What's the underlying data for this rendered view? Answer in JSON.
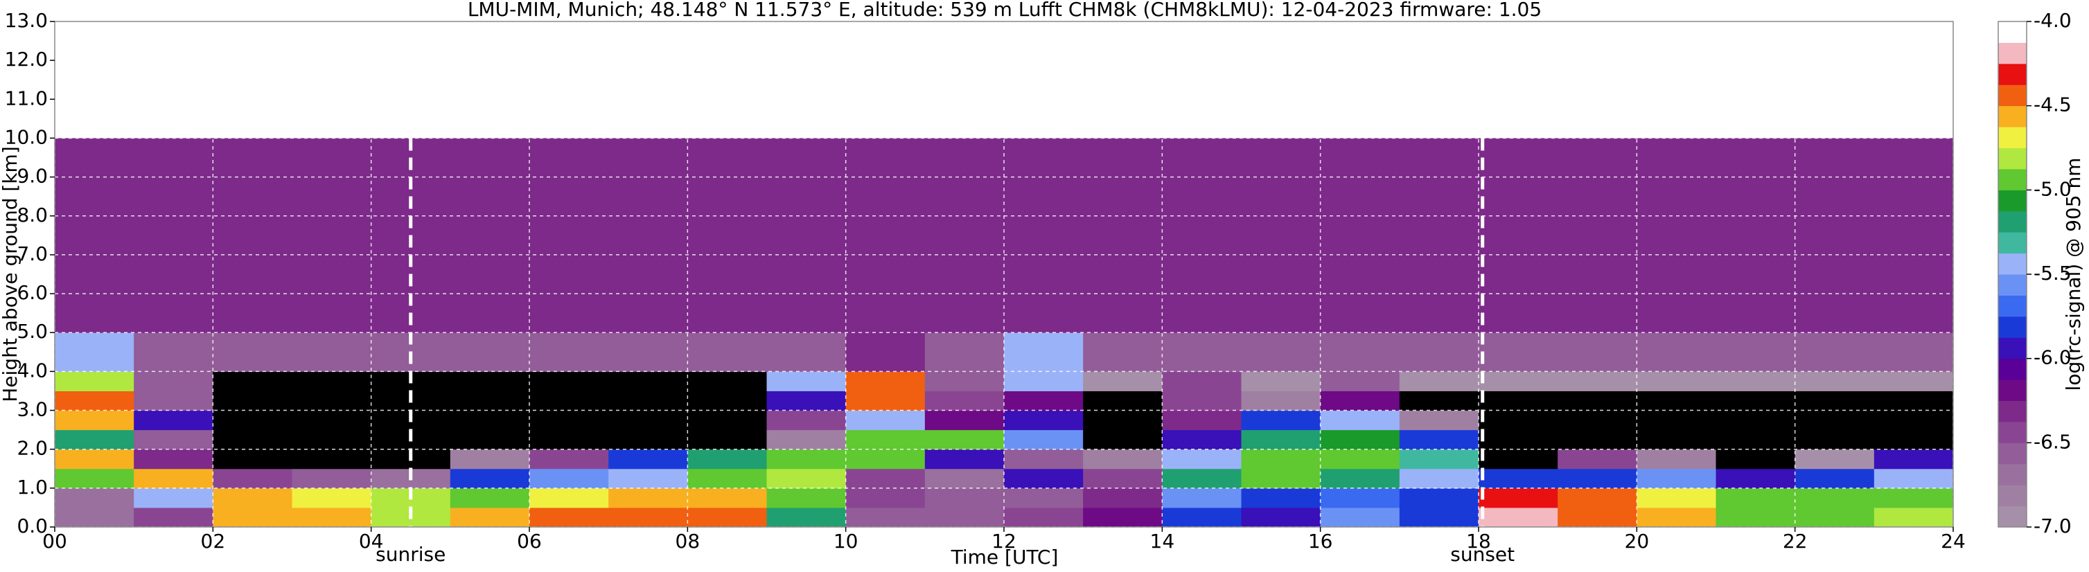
{
  "chart_data": {
    "type": "heatmap",
    "title": "LMU-MIM, Munich; 48.148° N 11.573° E, altitude: 539 m    Lufft CHM8k (CHM8kLMU): 12-04-2023    firmware: 1.05",
    "x_label": "Time [UTC]",
    "y_label": "Height above ground [km]",
    "colorbar_label": "log(rc-signal) @ 905 nm",
    "xlim": [
      0,
      24
    ],
    "ylim": [
      0,
      13
    ],
    "xticks": [
      {
        "value": 0,
        "label": "00"
      },
      {
        "value": 2,
        "label": "02"
      },
      {
        "value": 4,
        "label": "04"
      },
      {
        "value": 6,
        "label": "06"
      },
      {
        "value": 8,
        "label": "08"
      },
      10,
      12,
      14,
      16,
      18,
      20,
      22,
      24
    ],
    "yticks": [
      {
        "value": 0,
        "label": "0.0"
      },
      {
        "value": 1,
        "label": "1.0"
      },
      {
        "value": 2,
        "label": "2.0"
      },
      {
        "value": 3,
        "label": "3.0"
      },
      {
        "value": 4,
        "label": "4.0"
      },
      {
        "value": 5,
        "label": "5.0"
      },
      {
        "value": 6,
        "label": "6.0"
      },
      {
        "value": 7,
        "label": "7.0"
      },
      {
        "value": 8,
        "label": "8.0"
      },
      {
        "value": 9,
        "label": "9.0"
      },
      {
        "value": 10,
        "label": "10.0"
      },
      {
        "value": 11,
        "label": "11.0"
      },
      {
        "value": 12,
        "label": "12.0"
      },
      {
        "value": 13,
        "label": "13.0"
      }
    ],
    "grid": true,
    "x_bins": [
      0,
      1,
      2,
      3,
      4,
      5,
      6,
      7,
      8,
      9,
      10,
      11,
      12,
      13,
      14,
      15,
      16,
      17,
      18,
      19,
      20,
      21,
      22,
      23,
      24
    ],
    "y_bins": [
      0,
      0.5,
      1,
      1.5,
      2,
      2.5,
      3,
      3.5,
      4,
      5,
      10
    ],
    "z": [
      [
        -6.7,
        -6.5,
        -4.6,
        -4.6,
        -4.8,
        -4.6,
        -4.5,
        -4.5,
        -4.4,
        -5.2,
        -6.6,
        -6.6,
        -6.5,
        -6.2,
        -5.8,
        -6.0,
        -5.6,
        -5.8,
        -4.2,
        -4.4,
        -4.6,
        -4.9,
        -4.9,
        -4.8
      ],
      [
        -6.7,
        -5.5,
        -4.6,
        -4.7,
        -4.8,
        -5.0,
        -4.7,
        -4.6,
        -4.6,
        -5.0,
        -6.5,
        -6.6,
        -6.6,
        -6.3,
        -5.6,
        -5.8,
        -5.7,
        -5.8,
        -4.3,
        -4.5,
        -4.7,
        -5.0,
        -5.0,
        -4.9
      ],
      [
        -5.0,
        -4.6,
        -6.4,
        -6.6,
        -6.7,
        -5.8,
        -5.6,
        -5.4,
        -5.0,
        -4.8,
        -6.5,
        -6.7,
        -6.0,
        -6.5,
        -5.2,
        -5.0,
        -5.2,
        -5.4,
        -5.8,
        -5.8,
        -5.6,
        -6.0,
        -5.8,
        -5.4
      ],
      [
        -4.6,
        -6.3,
        -7.5,
        -7.5,
        -7.5,
        -6.8,
        -6.5,
        -5.8,
        -5.2,
        -5.0,
        -5.0,
        -6.0,
        -6.6,
        -6.8,
        -5.4,
        -4.9,
        -5.0,
        -5.3,
        -7.5,
        -6.5,
        -6.8,
        -7.5,
        -7.0,
        -6.0
      ],
      [
        -5.2,
        -6.6,
        -7.5,
        -7.5,
        -7.5,
        -7.5,
        -7.5,
        -7.5,
        -7.5,
        -6.8,
        -4.9,
        -4.9,
        -5.6,
        -7.5,
        -6.0,
        -5.2,
        -5.1,
        -5.8,
        -7.5,
        -7.5,
        -7.5,
        -7.5,
        -7.5,
        -7.5
      ],
      [
        -4.6,
        -6.0,
        -7.5,
        -7.5,
        -7.5,
        -7.5,
        -7.5,
        -7.5,
        -7.5,
        -6.5,
        -5.5,
        -6.2,
        -6.0,
        -7.5,
        -6.3,
        -5.8,
        -5.5,
        -6.8,
        -7.5,
        -7.5,
        -7.5,
        -7.5,
        -7.5,
        -7.5
      ],
      [
        -4.4,
        -6.6,
        -7.5,
        -7.5,
        -7.5,
        -7.5,
        -7.5,
        -7.3,
        -7.3,
        -6.0,
        -4.5,
        -6.5,
        -6.2,
        -7.3,
        -6.5,
        -6.8,
        -6.2,
        -7.3,
        -7.3,
        -7.3,
        -7.3,
        -7.3,
        -7.3,
        -7.3
      ],
      [
        -4.8,
        -6.6,
        -7.2,
        -7.2,
        -7.2,
        -7.2,
        -7.2,
        -7.2,
        -7.2,
        -5.5,
        -4.5,
        -6.6,
        -5.5,
        -7.0,
        -6.4,
        -6.9,
        -6.6,
        -7.0,
        -7.0,
        -7.0,
        -7.0,
        -7.0,
        -7.0,
        -7.0
      ],
      [
        -5.5,
        -6.6,
        -6.6,
        -6.6,
        -6.6,
        -6.6,
        -6.6,
        -6.6,
        -6.6,
        -6.6,
        -6.3,
        -6.6,
        -5.5,
        -6.6,
        -6.6,
        -6.6,
        -6.6,
        -6.6,
        -6.6,
        -6.6,
        -6.6,
        -6.6,
        -6.6,
        -6.6
      ],
      [
        -6.3,
        -6.3,
        -6.3,
        -6.3,
        -6.3,
        -6.3,
        -6.3,
        -6.3,
        -6.3,
        -6.3,
        -6.3,
        -6.3,
        -6.3,
        -6.3,
        -6.3,
        -6.3,
        -6.3,
        -6.3,
        -6.3,
        -6.3,
        -6.3,
        -6.3,
        -6.3,
        -6.3
      ]
    ],
    "clim": [
      -7,
      -4
    ],
    "colorbar_ticks": [
      {
        "value": -7,
        "label": "-7.0"
      },
      {
        "value": -6.5,
        "label": "-6.5"
      },
      {
        "value": -6,
        "label": "-6.0"
      },
      {
        "value": -5.5,
        "label": "-5.5"
      },
      {
        "value": -5,
        "label": "-5.0"
      },
      {
        "value": -4.5,
        "label": "-4.5"
      },
      {
        "value": -4,
        "label": "-4.0"
      }
    ],
    "colormap": [
      "#a68fa8",
      "#9f80a2",
      "#99709e",
      "#925d98",
      "#8a4592",
      "#7d2a8a",
      "#6e0a86",
      "#5a0098",
      "#3a10b8",
      "#1a3ad8",
      "#3a6af0",
      "#6a92f5",
      "#9ab2f8",
      "#40b8a0",
      "#20a070",
      "#1a9a2a",
      "#60c830",
      "#b0e840",
      "#f0f040",
      "#f8b020",
      "#f06010",
      "#e81010",
      "#f4b8c0",
      "#ffffff"
    ],
    "under_color": "#000000",
    "annotations": [
      {
        "x": 4.5,
        "label": "sunrise"
      },
      {
        "x": 18.05,
        "label": "sunset"
      }
    ]
  }
}
